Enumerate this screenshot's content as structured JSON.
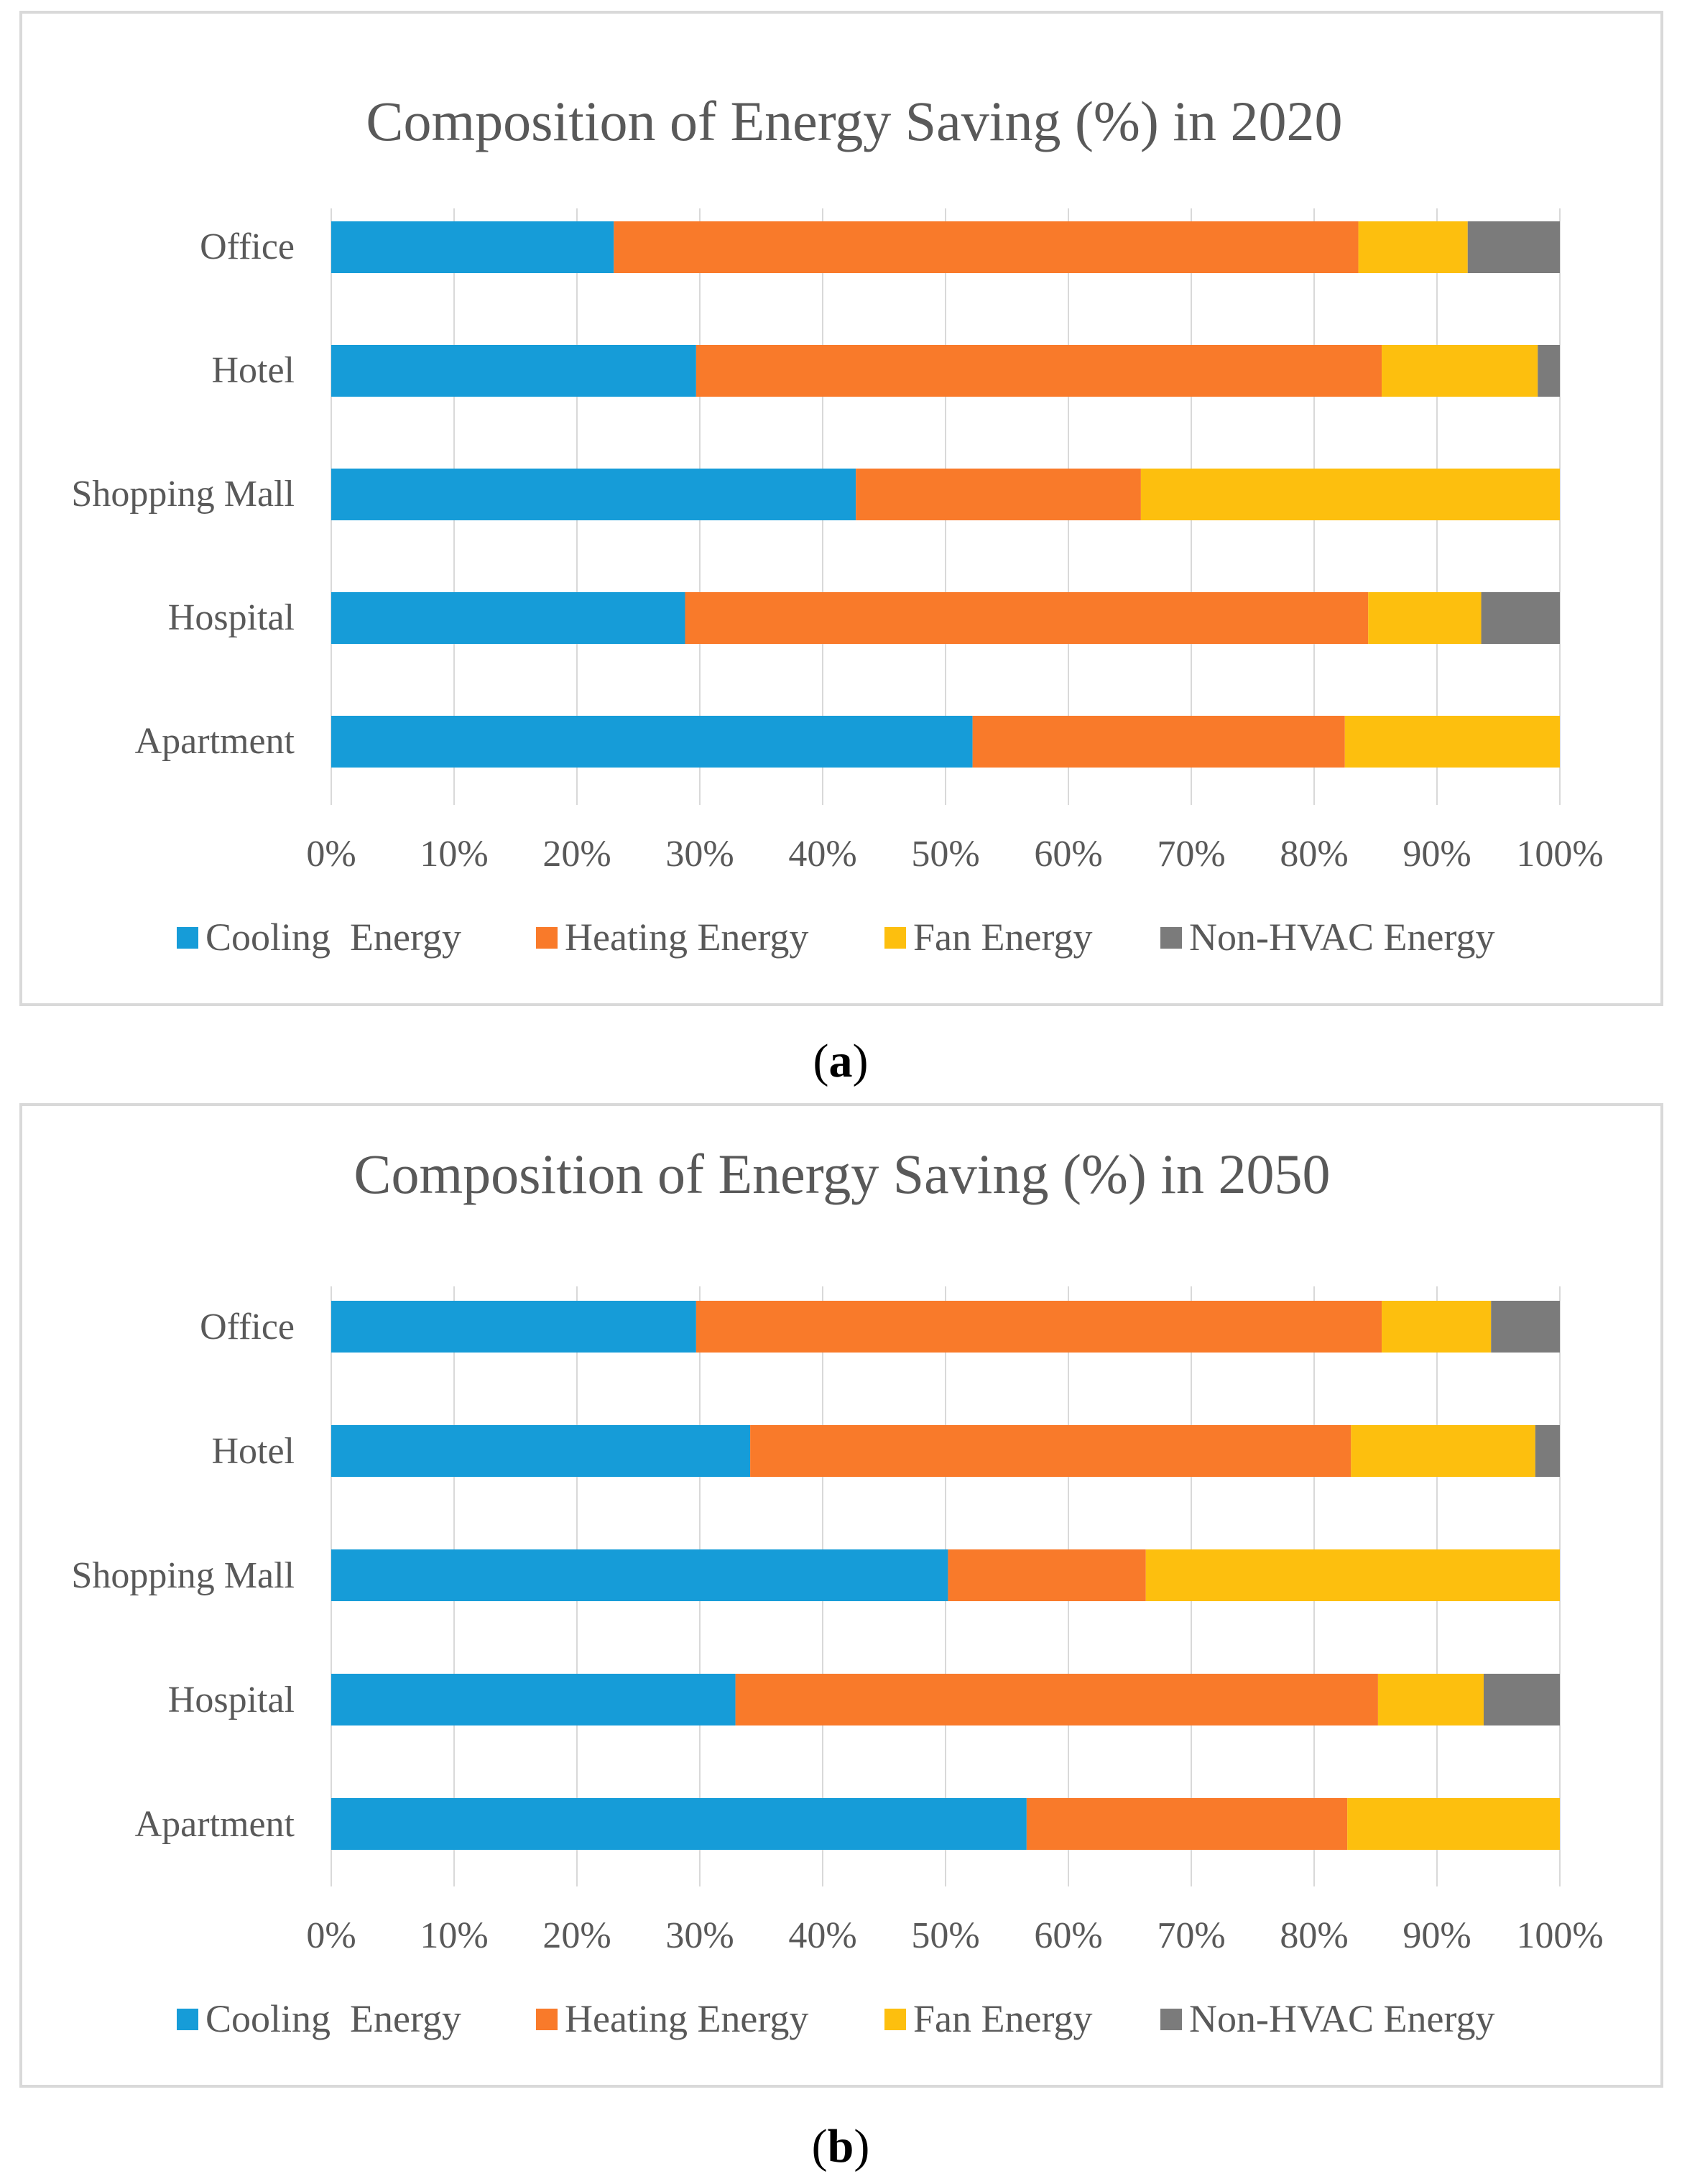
{
  "colors": {
    "cooling": "#169cd8",
    "heating": "#f97a2a",
    "fan": "#fdbf0e",
    "nonhvac": "#7b7b7b",
    "grid": "#d9d9d9",
    "frame": "#d9d9d9",
    "text": "#595959"
  },
  "chart_data": [
    {
      "type": "bar",
      "orientation": "horizontal",
      "stacked": "percent",
      "title": "Composition of Energy Saving (%) in 2020",
      "caption_open": "(",
      "caption_letter": "a",
      "caption_close": ")",
      "categories": [
        "Office",
        "Hotel",
        "Shopping Mall",
        "Hospital",
        "Apartment"
      ],
      "series": [
        {
          "name": "Cooling  Energy",
          "color_key": "cooling",
          "values": [
            23,
            29.7,
            42.7,
            28.8,
            52.2
          ]
        },
        {
          "name": "Heating Energy",
          "color_key": "heating",
          "values": [
            60.6,
            55.8,
            23.2,
            55.6,
            30.3
          ]
        },
        {
          "name": "Fan Energy",
          "color_key": "fan",
          "values": [
            8.9,
            12.7,
            34.1,
            9.2,
            17.5
          ]
        },
        {
          "name": "Non-HVAC Energy",
          "color_key": "nonhvac",
          "values": [
            7.5,
            1.8,
            0,
            6.4,
            0
          ]
        }
      ],
      "x_ticks": [
        "0%",
        "10%",
        "20%",
        "30%",
        "40%",
        "50%",
        "60%",
        "70%",
        "80%",
        "90%",
        "100%"
      ],
      "xlim": [
        0,
        100
      ],
      "grid": true,
      "legend_position": "bottom"
    },
    {
      "type": "bar",
      "orientation": "horizontal",
      "stacked": "percent",
      "title": "Composition of Energy Saving (%) in 2050",
      "caption_open": "(",
      "caption_letter": "b",
      "caption_close": ")",
      "categories": [
        "Office",
        "Hotel",
        "Shopping Mall",
        "Hospital",
        "Apartment"
      ],
      "series": [
        {
          "name": "Cooling  Energy",
          "color_key": "cooling",
          "values": [
            29.7,
            34.1,
            50.2,
            32.9,
            56.6
          ]
        },
        {
          "name": "Heating Energy",
          "color_key": "heating",
          "values": [
            55.8,
            48.9,
            16.1,
            52.3,
            26.1
          ]
        },
        {
          "name": "Fan Energy",
          "color_key": "fan",
          "values": [
            8.9,
            15,
            33.7,
            8.6,
            17.3
          ]
        },
        {
          "name": "Non-HVAC Energy",
          "color_key": "nonhvac",
          "values": [
            5.6,
            2,
            0,
            6.2,
            0
          ]
        }
      ],
      "x_ticks": [
        "0%",
        "10%",
        "20%",
        "30%",
        "40%",
        "50%",
        "60%",
        "70%",
        "80%",
        "90%",
        "100%"
      ],
      "xlim": [
        0,
        100
      ],
      "grid": true,
      "legend_position": "bottom"
    }
  ]
}
